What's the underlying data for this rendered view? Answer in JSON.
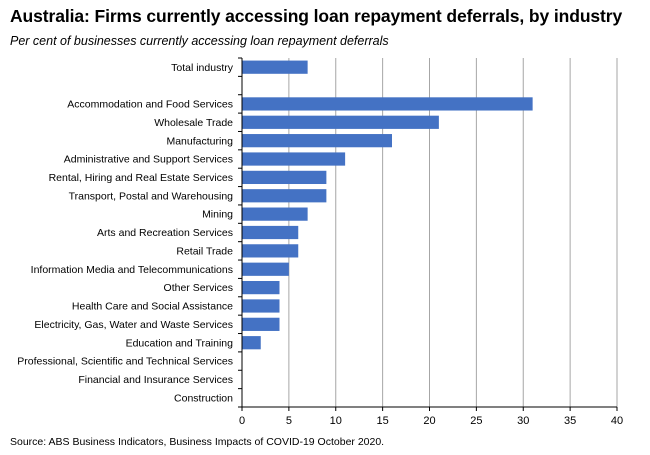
{
  "header": {
    "title": "Australia: Firms currently accessing loan repayment deferrals, by industry",
    "subtitle": "Per cent of businesses currently accessing loan repayment deferrals"
  },
  "footer": {
    "source": "Source: ABS Business Indicators, Business Impacts of COVID-19 October 2020."
  },
  "colors": {
    "bar": "#4472C4",
    "grid": "#A6A6A6",
    "axis": "#000000"
  },
  "chart_data": {
    "type": "bar",
    "orientation": "horizontal",
    "title": "Australia: Firms currently accessing loan repayment deferrals, by industry",
    "subtitle": "Per cent of businesses currently accessing loan repayment deferrals",
    "xlabel": "",
    "ylabel": "",
    "xlim": [
      0,
      40
    ],
    "xticks": [
      0,
      5,
      10,
      15,
      20,
      25,
      30,
      35,
      40
    ],
    "grid": true,
    "legend": "none",
    "categories": [
      "Total industry",
      "",
      "Accommodation and Food Services",
      "Wholesale Trade",
      "Manufacturing",
      "Administrative and Support Services",
      "Rental, Hiring and Real Estate Services",
      "Transport, Postal and Warehousing",
      "Mining",
      "Arts and Recreation Services",
      "Retail Trade",
      "Information Media and Telecommunications",
      "Other Services",
      "Health Care and Social Assistance",
      "Electricity, Gas, Water and Waste Services",
      "Education and Training",
      "Professional, Scientific and Technical Services",
      "Financial and Insurance Services",
      "Construction"
    ],
    "values": [
      7,
      null,
      31,
      21,
      16,
      11,
      9,
      9,
      7,
      6,
      6,
      5,
      4,
      4,
      4,
      2,
      0,
      0,
      0
    ]
  }
}
